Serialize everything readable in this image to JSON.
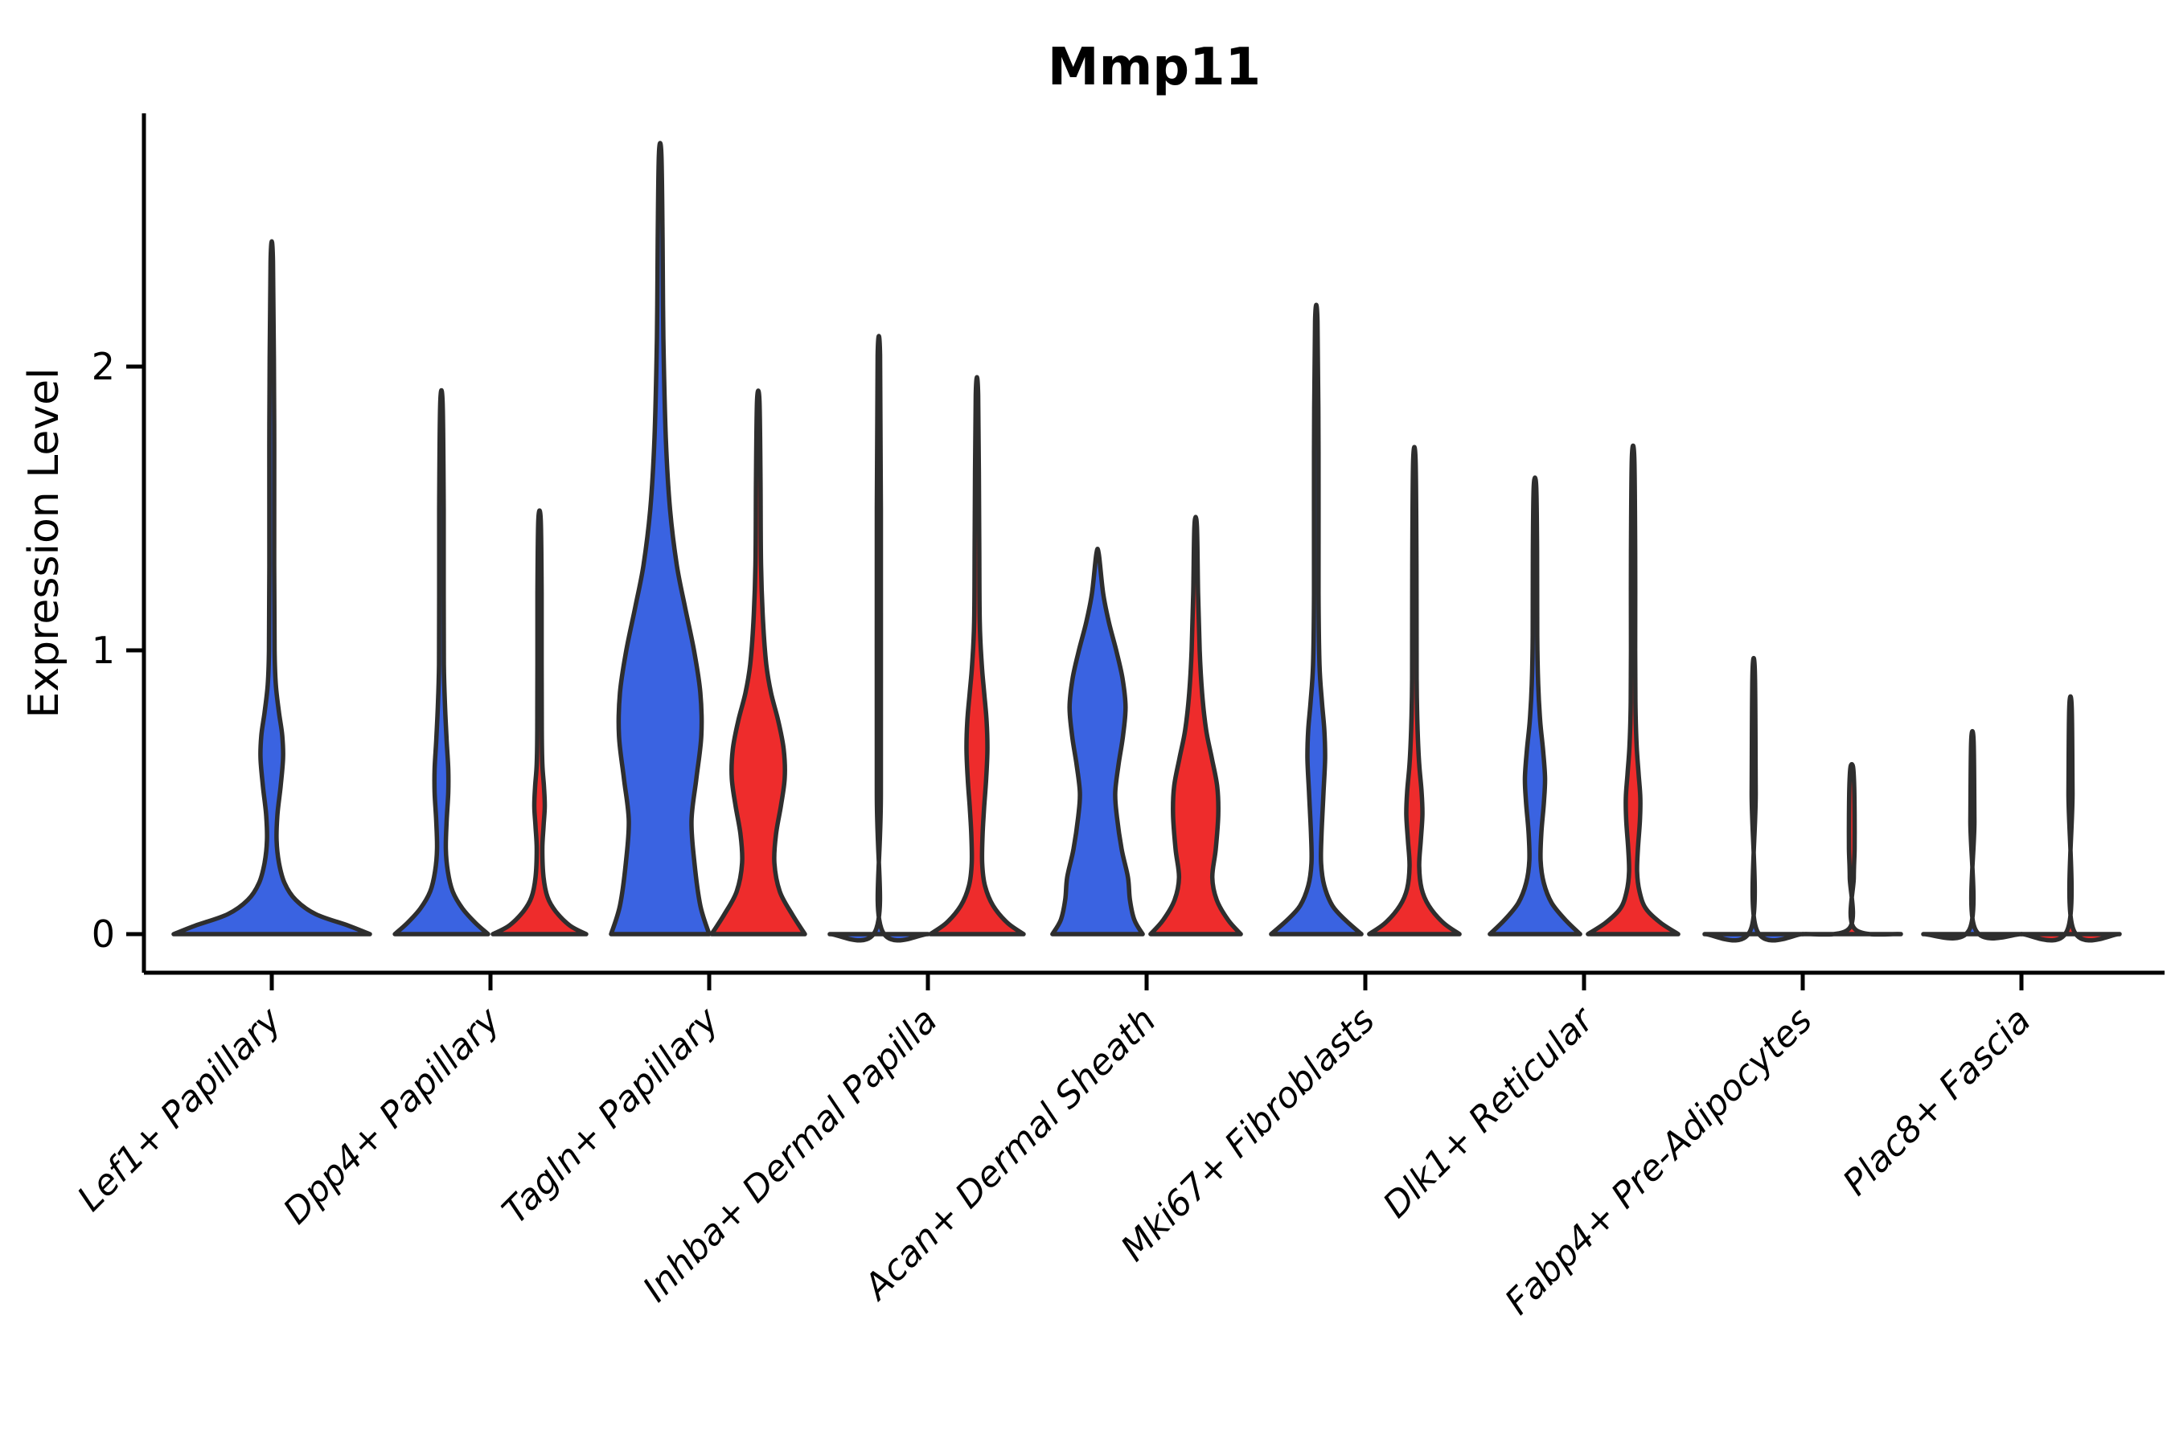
{
  "title": "Mmp11",
  "axes": {
    "ylabel": "Expression Level",
    "ytick_labels": [
      "0",
      "1",
      "2"
    ]
  },
  "colors": {
    "blue_fill": "#3A63E1",
    "red_fill": "#EE2C2C",
    "violin_stroke": "#2E2E2E",
    "axis_color": "#000000",
    "background": "#FFFFFF"
  },
  "chart_data": {
    "type": "violin",
    "title": "Mmp11",
    "xlabel": "",
    "ylabel": "Expression Level",
    "ylim": [
      -0.15,
      2.9
    ],
    "yticks": [
      0,
      1,
      2
    ],
    "grid": false,
    "legend": "none",
    "split_colors": {
      "blue": "#3A63E1",
      "red": "#EE2C2C"
    },
    "categories": [
      "Lef1+ Papillary",
      "Dpp4+ Papillary",
      "Tagln+ Papillary",
      "Inhba+ Dermal Papilla",
      "Acan+ Dermal Sheath",
      "Mki67+ Fibroblasts",
      "Dlk1+ Reticular",
      "Fabp4+ Pre-Adipocytes",
      "Plac8+ Fascia"
    ],
    "violins": [
      {
        "category": "Lef1+ Papillary",
        "split": "blue",
        "dodge": 0,
        "max_expression": 2.37,
        "profile": [
          [
            0,
            2.0
          ],
          [
            0.03,
            1.56
          ],
          [
            0.07,
            0.9
          ],
          [
            0.12,
            0.49
          ],
          [
            0.18,
            0.26
          ],
          [
            0.25,
            0.148
          ],
          [
            0.33,
            0.098
          ],
          [
            0.42,
            0.115
          ],
          [
            0.52,
            0.18
          ],
          [
            0.62,
            0.23
          ],
          [
            0.7,
            0.213
          ],
          [
            0.78,
            0.148
          ],
          [
            0.88,
            0.082
          ],
          [
            1.0,
            0.057
          ],
          [
            1.3,
            0.049
          ],
          [
            1.8,
            0.049
          ],
          [
            2.37,
            0.025
          ]
        ]
      },
      {
        "category": "Dpp4+ Papillary",
        "split": "blue",
        "dodge": -1,
        "max_expression": 1.87,
        "profile": [
          [
            0,
            0.95
          ],
          [
            0.04,
            0.69
          ],
          [
            0.09,
            0.43
          ],
          [
            0.15,
            0.23
          ],
          [
            0.22,
            0.131
          ],
          [
            0.3,
            0.09
          ],
          [
            0.4,
            0.107
          ],
          [
            0.5,
            0.139
          ],
          [
            0.58,
            0.139
          ],
          [
            0.68,
            0.107
          ],
          [
            0.8,
            0.074
          ],
          [
            0.95,
            0.049
          ],
          [
            1.2,
            0.046
          ],
          [
            1.5,
            0.046
          ],
          [
            1.87,
            0.025
          ]
        ]
      },
      {
        "category": "Dpp4+ Papillary",
        "split": "red",
        "dodge": 1,
        "max_expression": 1.46,
        "profile": [
          [
            0,
            0.95
          ],
          [
            0.03,
            0.62
          ],
          [
            0.08,
            0.33
          ],
          [
            0.13,
            0.164
          ],
          [
            0.2,
            0.082
          ],
          [
            0.3,
            0.057
          ],
          [
            0.38,
            0.082
          ],
          [
            0.45,
            0.107
          ],
          [
            0.52,
            0.09
          ],
          [
            0.6,
            0.057
          ],
          [
            0.72,
            0.046
          ],
          [
            0.95,
            0.043
          ],
          [
            1.2,
            0.043
          ],
          [
            1.46,
            0.025
          ]
        ]
      },
      {
        "category": "Tagln+ Papillary",
        "split": "blue",
        "dodge": -1,
        "max_expression": 2.75,
        "profile": [
          [
            0,
            1.0
          ],
          [
            0.1,
            0.82
          ],
          [
            0.25,
            0.7
          ],
          [
            0.4,
            0.64
          ],
          [
            0.55,
            0.74
          ],
          [
            0.7,
            0.84
          ],
          [
            0.85,
            0.82
          ],
          [
            1.0,
            0.69
          ],
          [
            1.15,
            0.51
          ],
          [
            1.3,
            0.34
          ],
          [
            1.5,
            0.2
          ],
          [
            1.75,
            0.115
          ],
          [
            2.1,
            0.066
          ],
          [
            2.45,
            0.049
          ],
          [
            2.75,
            0.025
          ]
        ]
      },
      {
        "category": "Tagln+ Papillary",
        "split": "red",
        "dodge": 1,
        "max_expression": 1.88,
        "profile": [
          [
            0,
            0.95
          ],
          [
            0.07,
            0.69
          ],
          [
            0.15,
            0.44
          ],
          [
            0.25,
            0.33
          ],
          [
            0.35,
            0.36
          ],
          [
            0.45,
            0.46
          ],
          [
            0.55,
            0.54
          ],
          [
            0.65,
            0.52
          ],
          [
            0.75,
            0.41
          ],
          [
            0.85,
            0.26
          ],
          [
            0.95,
            0.164
          ],
          [
            1.1,
            0.098
          ],
          [
            1.3,
            0.057
          ],
          [
            1.6,
            0.046
          ],
          [
            1.88,
            0.025
          ]
        ]
      },
      {
        "category": "Inhba+ Dermal Papilla",
        "split": "blue",
        "dodge": -1,
        "max_expression": 2.04,
        "profile": [
          [
            0,
            1.0
          ],
          [
            0.02,
            0.05
          ],
          [
            0.5,
            0.041
          ],
          [
            1.5,
            0.041
          ],
          [
            2.04,
            0.025
          ]
        ]
      },
      {
        "category": "Inhba+ Dermal Papilla",
        "split": "red",
        "dodge": 1,
        "max_expression": 1.9,
        "profile": [
          [
            0,
            0.95
          ],
          [
            0.04,
            0.62
          ],
          [
            0.1,
            0.33
          ],
          [
            0.17,
            0.164
          ],
          [
            0.25,
            0.107
          ],
          [
            0.35,
            0.115
          ],
          [
            0.45,
            0.148
          ],
          [
            0.55,
            0.189
          ],
          [
            0.65,
            0.213
          ],
          [
            0.75,
            0.197
          ],
          [
            0.85,
            0.148
          ],
          [
            0.95,
            0.098
          ],
          [
            1.1,
            0.057
          ],
          [
            1.4,
            0.046
          ],
          [
            1.9,
            0.025
          ]
        ]
      },
      {
        "category": "Acan+ Dermal Sheath",
        "split": "blue",
        "dodge": -1,
        "max_expression": 1.34,
        "profile": [
          [
            0,
            0.92
          ],
          [
            0.05,
            0.75
          ],
          [
            0.12,
            0.66
          ],
          [
            0.2,
            0.62
          ],
          [
            0.3,
            0.49
          ],
          [
            0.42,
            0.39
          ],
          [
            0.5,
            0.36
          ],
          [
            0.6,
            0.43
          ],
          [
            0.7,
            0.52
          ],
          [
            0.8,
            0.57
          ],
          [
            0.9,
            0.51
          ],
          [
            1.0,
            0.38
          ],
          [
            1.1,
            0.23
          ],
          [
            1.2,
            0.115
          ],
          [
            1.34,
            0.025
          ]
        ]
      },
      {
        "category": "Acan+ Dermal Sheath",
        "split": "red",
        "dodge": 1,
        "max_expression": 1.44,
        "profile": [
          [
            0,
            0.92
          ],
          [
            0.05,
            0.66
          ],
          [
            0.12,
            0.43
          ],
          [
            0.2,
            0.34
          ],
          [
            0.3,
            0.41
          ],
          [
            0.42,
            0.46
          ],
          [
            0.52,
            0.44
          ],
          [
            0.62,
            0.33
          ],
          [
            0.72,
            0.213
          ],
          [
            0.85,
            0.131
          ],
          [
            1.0,
            0.082
          ],
          [
            1.2,
            0.049
          ],
          [
            1.44,
            0.025
          ]
        ]
      },
      {
        "category": "Mki67+ Fibroblasts",
        "split": "blue",
        "dodge": -1,
        "max_expression": 2.16,
        "profile": [
          [
            0,
            0.92
          ],
          [
            0.05,
            0.59
          ],
          [
            0.1,
            0.33
          ],
          [
            0.17,
            0.164
          ],
          [
            0.25,
            0.098
          ],
          [
            0.35,
            0.107
          ],
          [
            0.5,
            0.148
          ],
          [
            0.62,
            0.18
          ],
          [
            0.72,
            0.164
          ],
          [
            0.82,
            0.115
          ],
          [
            0.95,
            0.066
          ],
          [
            1.2,
            0.046
          ],
          [
            1.7,
            0.046
          ],
          [
            2.16,
            0.025
          ]
        ]
      },
      {
        "category": "Mki67+ Fibroblasts",
        "split": "red",
        "dodge": 1,
        "max_expression": 1.67,
        "profile": [
          [
            0,
            0.92
          ],
          [
            0.04,
            0.59
          ],
          [
            0.1,
            0.295
          ],
          [
            0.16,
            0.148
          ],
          [
            0.24,
            0.098
          ],
          [
            0.33,
            0.131
          ],
          [
            0.42,
            0.164
          ],
          [
            0.5,
            0.148
          ],
          [
            0.6,
            0.098
          ],
          [
            0.72,
            0.066
          ],
          [
            0.9,
            0.046
          ],
          [
            1.3,
            0.043
          ],
          [
            1.67,
            0.025
          ]
        ]
      },
      {
        "category": "Dlk1+ Reticular",
        "split": "blue",
        "dodge": -1,
        "max_expression": 1.58,
        "profile": [
          [
            0,
            0.92
          ],
          [
            0.05,
            0.62
          ],
          [
            0.11,
            0.34
          ],
          [
            0.18,
            0.18
          ],
          [
            0.26,
            0.115
          ],
          [
            0.36,
            0.131
          ],
          [
            0.46,
            0.18
          ],
          [
            0.55,
            0.205
          ],
          [
            0.65,
            0.164
          ],
          [
            0.75,
            0.107
          ],
          [
            0.88,
            0.066
          ],
          [
            1.05,
            0.046
          ],
          [
            1.35,
            0.043
          ],
          [
            1.58,
            0.025
          ]
        ]
      },
      {
        "category": "Dlk1+ Reticular",
        "split": "red",
        "dodge": 1,
        "max_expression": 1.68,
        "profile": [
          [
            0,
            0.92
          ],
          [
            0.04,
            0.56
          ],
          [
            0.09,
            0.26
          ],
          [
            0.15,
            0.131
          ],
          [
            0.22,
            0.082
          ],
          [
            0.3,
            0.098
          ],
          [
            0.4,
            0.139
          ],
          [
            0.48,
            0.148
          ],
          [
            0.56,
            0.115
          ],
          [
            0.66,
            0.074
          ],
          [
            0.8,
            0.049
          ],
          [
            1.0,
            0.043
          ],
          [
            1.35,
            0.043
          ],
          [
            1.68,
            0.025
          ]
        ]
      },
      {
        "category": "Fabp4+ Pre-Adipocytes",
        "split": "blue",
        "dodge": -1,
        "max_expression": 0.92,
        "profile": [
          [
            0,
            1.0
          ],
          [
            0.02,
            0.05
          ],
          [
            0.5,
            0.041
          ],
          [
            0.92,
            0.025
          ]
        ]
      },
      {
        "category": "Fabp4+ Pre-Adipocytes",
        "split": "red",
        "dodge": 1,
        "max_expression": 0.59,
        "profile": [
          [
            0,
            1.0
          ],
          [
            0.02,
            0.05
          ],
          [
            0.2,
            0.041
          ],
          [
            0.3,
            0.057
          ],
          [
            0.42,
            0.057
          ],
          [
            0.52,
            0.049
          ],
          [
            0.59,
            0.025
          ]
        ]
      },
      {
        "category": "Plac8+ Fascia",
        "split": "blue",
        "dodge": -1,
        "max_expression": 0.68,
        "profile": [
          [
            0,
            1.0
          ],
          [
            0.02,
            0.05
          ],
          [
            0.4,
            0.041
          ],
          [
            0.68,
            0.025
          ]
        ]
      },
      {
        "category": "Plac8+ Fascia",
        "split": "red",
        "dodge": 1,
        "max_expression": 0.8,
        "profile": [
          [
            0,
            1.0
          ],
          [
            0.02,
            0.05
          ],
          [
            0.5,
            0.041
          ],
          [
            0.8,
            0.025
          ]
        ]
      }
    ]
  }
}
